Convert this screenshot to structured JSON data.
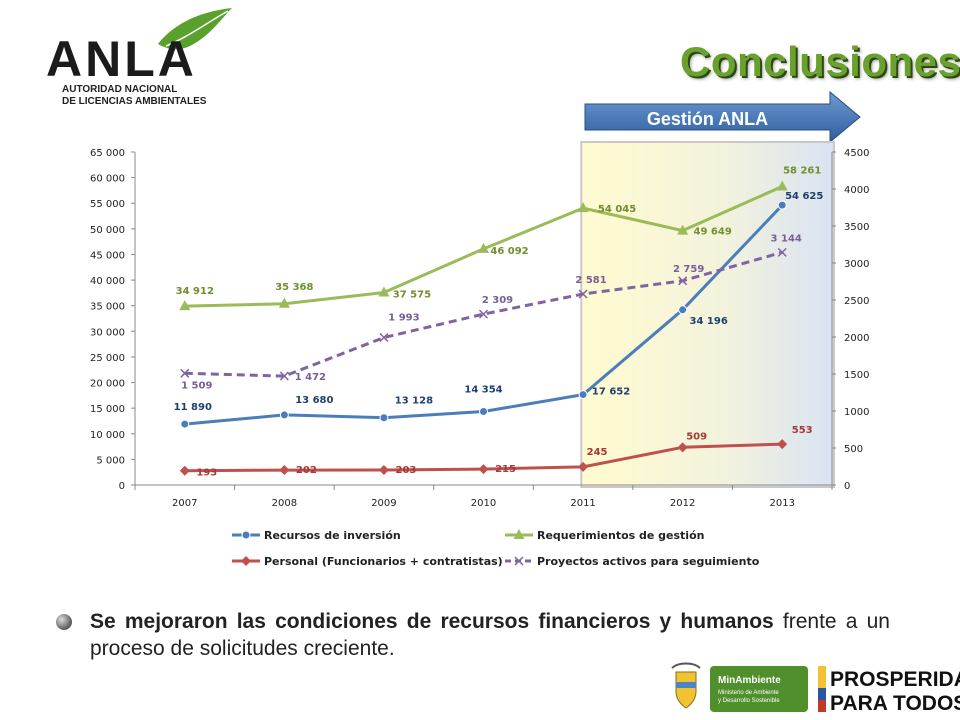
{
  "logo": {
    "brand": "ANLA",
    "subtitle_line1": "AUTORIDAD NACIONAL",
    "subtitle_line2": "DE LICENCIAS AMBIENTALES"
  },
  "title": "Conclusiones",
  "highlight_label": "Gestión ANLA",
  "bullet": {
    "bold_text": "Se mejoraron las condiciones de recursos financieros y humanos",
    "normal_text": "frente a un proceso de solicitudes creciente."
  },
  "footer": {
    "ministry_line1": "MinAmbiente",
    "ministry_line2": "Ministerio de Ambiente",
    "ministry_line3": "y Desarrollo Sostenible",
    "slogan_line1": "PROSPERIDAD",
    "slogan_line2": "PARA TODOS"
  },
  "chart_data": {
    "type": "line",
    "x": [
      "2007",
      "2008",
      "2009",
      "2010",
      "2011",
      "2012",
      "2013"
    ],
    "y_left_ticks": [
      "0",
      "5 000",
      "10 000",
      "15 000",
      "20 000",
      "25 000",
      "30 000",
      "35 000",
      "40 000",
      "45 000",
      "50 000",
      "55 000",
      "60 000",
      "65 000"
    ],
    "y_right_ticks": [
      "0",
      "500",
      "1000",
      "1500",
      "2000",
      "2500",
      "3000",
      "3500",
      "4000",
      "4500"
    ],
    "ylim_left": [
      0,
      65000
    ],
    "ylim_right": [
      0,
      4500
    ],
    "highlight_range": [
      "2011",
      "2013"
    ],
    "legend_position": "bottom",
    "series": [
      {
        "name": "Recursos de inversión",
        "axis": "left",
        "color": "#4a7ebb",
        "marker": "circle",
        "dashed": false,
        "values": [
          11890,
          13680,
          13128,
          14354,
          17652,
          34196,
          54625
        ],
        "labels": [
          "11 890",
          "13 680",
          "13 128",
          "14 354",
          "17 652",
          "34 196",
          "54 625"
        ],
        "label_color": "#1f3f6e"
      },
      {
        "name": "Requerimientos de gestión",
        "axis": "left",
        "color": "#9bbb59",
        "marker": "triangle",
        "dashed": false,
        "values": [
          34912,
          35368,
          37575,
          46092,
          54045,
          49649,
          58261
        ],
        "labels": [
          "34 912",
          "35 368",
          "37 575",
          "46 092",
          "54 045",
          "49 649",
          "58 261"
        ],
        "label_color": "#6f8f2e"
      },
      {
        "name": "Personal (Funcionarios + contratistas)",
        "axis": "right",
        "color": "#c0504d",
        "marker": "diamond",
        "dashed": false,
        "values": [
          193,
          202,
          203,
          215,
          245,
          509,
          553
        ],
        "labels": [
          "193",
          "202",
          "203",
          "215",
          "245",
          "509",
          "553"
        ],
        "label_color": "#a33a36"
      },
      {
        "name": "Proyectos activos para seguimiento",
        "axis": "right",
        "color": "#8064a2",
        "marker": "x",
        "dashed": true,
        "values": [
          1509,
          1472,
          1993,
          2309,
          2581,
          2759,
          3144
        ],
        "labels": [
          "1 509",
          "1 472",
          "1 993",
          "2 309",
          "2 581",
          "2 759",
          "3 144"
        ],
        "label_color": "#7a5e9a"
      }
    ]
  }
}
